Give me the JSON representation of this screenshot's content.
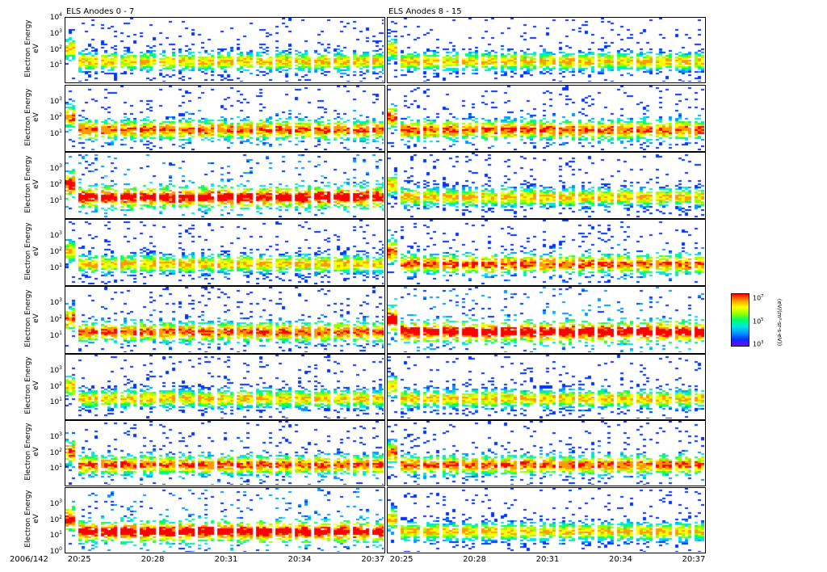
{
  "chart_data": {
    "type": "heatmap",
    "date_label": "2006/142",
    "columns": [
      {
        "title": "ELS Anodes 0 - 7",
        "anodes": [
          0,
          1,
          2,
          3,
          4,
          5,
          6,
          7
        ]
      },
      {
        "title": "ELS Anodes 8 - 15",
        "anodes": [
          8,
          9,
          10,
          11,
          12,
          13,
          14,
          15
        ]
      }
    ],
    "ylabel": "Electron Energy",
    "yunit": "eV",
    "yscale": "log",
    "ylim": [
      1,
      10000
    ],
    "ytick_labels": [
      "10",
      "10",
      "10",
      "10",
      "10"
    ],
    "ytick_exponents": [
      "0",
      "1",
      "2",
      "3",
      "4"
    ],
    "xlabel_ticks": [
      "20:25",
      "20:28",
      "20:31",
      "20:34",
      "20:37"
    ],
    "xlim_minutes": [
      1464.4,
      1477.5
    ],
    "colorbar": {
      "label": "(eV/(m²-sr-s-eV))",
      "tick_exponents": [
        "7",
        "5",
        "3"
      ],
      "scale": "log"
    },
    "colors": [
      "#7a00ff",
      "#0033ff",
      "#0099ff",
      "#00e5e5",
      "#00ff66",
      "#99ff00",
      "#ffff00",
      "#ff9900",
      "#ff0000"
    ],
    "peak_energy_ev": 20
  }
}
